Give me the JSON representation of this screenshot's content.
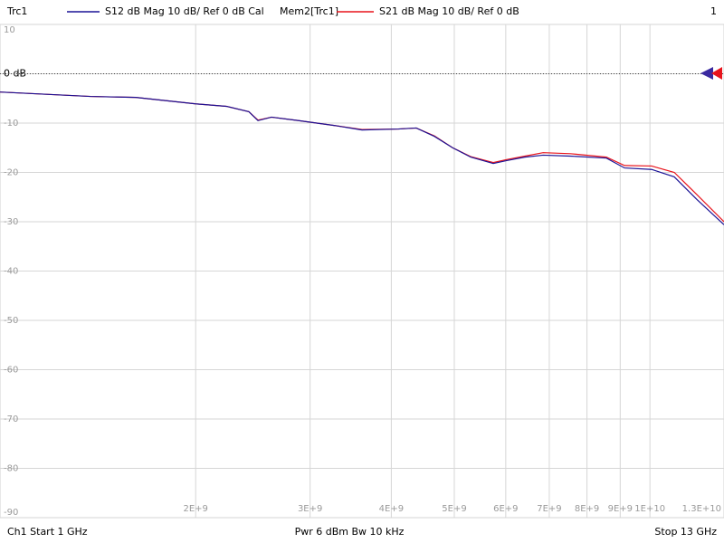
{
  "chart_data": {
    "type": "line",
    "trace_title": "Trc1",
    "window_number": "1",
    "footer": {
      "start": "Ch1  Start  1 GHz",
      "power": "Pwr  6 dBm  Bw  10 kHz",
      "stop": "Stop  13 GHz"
    },
    "x_scale": "log",
    "xlim": [
      1000000000,
      13000000000
    ],
    "xticks": [
      {
        "value": 2000000000,
        "label": "2E+9"
      },
      {
        "value": 3000000000,
        "label": "3E+9"
      },
      {
        "value": 4000000000,
        "label": "4E+9"
      },
      {
        "value": 5000000000,
        "label": "5E+9"
      },
      {
        "value": 6000000000,
        "label": "6E+9"
      },
      {
        "value": 7000000000,
        "label": "7E+9"
      },
      {
        "value": 8000000000,
        "label": "8E+9"
      },
      {
        "value": 9000000000,
        "label": "9E+9"
      },
      {
        "value": 10000000000,
        "label": "1E+10"
      },
      {
        "value": 13000000000,
        "label": "1.3E+10"
      }
    ],
    "ylim": [
      -90,
      10
    ],
    "yticks": [
      10,
      {
        "value": 0,
        "label": "0 dB"
      },
      -10,
      -20,
      -30,
      -40,
      -50,
      -60,
      -70,
      -80,
      -90
    ],
    "grid": true,
    "reference_line": 0,
    "x": [
      1000000000,
      1378000000,
      1618000000,
      2000000000,
      2230000000,
      2415000000,
      2494000000,
      2617000000,
      2880000000,
      3275000000,
      3606000000,
      4100000000,
      4370000000,
      4660000000,
      4970000000,
      5300000000,
      5740000000,
      6020000000,
      6420000000,
      6850000000,
      7540000000,
      8570000000,
      9140000000,
      10060000000,
      10900000000,
      11810000000,
      13000000000
    ],
    "series": [
      {
        "name": "Mem2[Trc1]",
        "description": "S21  dB Mag  10 dB/ Ref 0 dB",
        "color": "#e8141c",
        "values": [
          -3.7,
          -4.6,
          -4.8,
          -6.1,
          -6.6,
          -7.7,
          -9.4,
          -8.8,
          -9.5,
          -10.5,
          -11.3,
          -11.2,
          -11.0,
          -12.6,
          -15.0,
          -16.8,
          -18.0,
          -17.4,
          -16.7,
          -16.0,
          -16.2,
          -16.9,
          -18.6,
          -18.7,
          -20.0,
          -24.5,
          -30.0
        ]
      },
      {
        "name": "Trc1",
        "description": "S12  dB Mag  10 dB/ Ref 0 dB  Cal",
        "color": "#1c1496",
        "values": [
          -3.7,
          -4.6,
          -4.8,
          -6.1,
          -6.6,
          -7.7,
          -9.5,
          -8.8,
          -9.5,
          -10.5,
          -11.4,
          -11.2,
          -11.0,
          -12.7,
          -15.0,
          -16.9,
          -18.2,
          -17.6,
          -16.9,
          -16.5,
          -16.7,
          -17.1,
          -19.1,
          -19.4,
          -20.9,
          -25.5,
          -30.6
        ]
      }
    ]
  }
}
